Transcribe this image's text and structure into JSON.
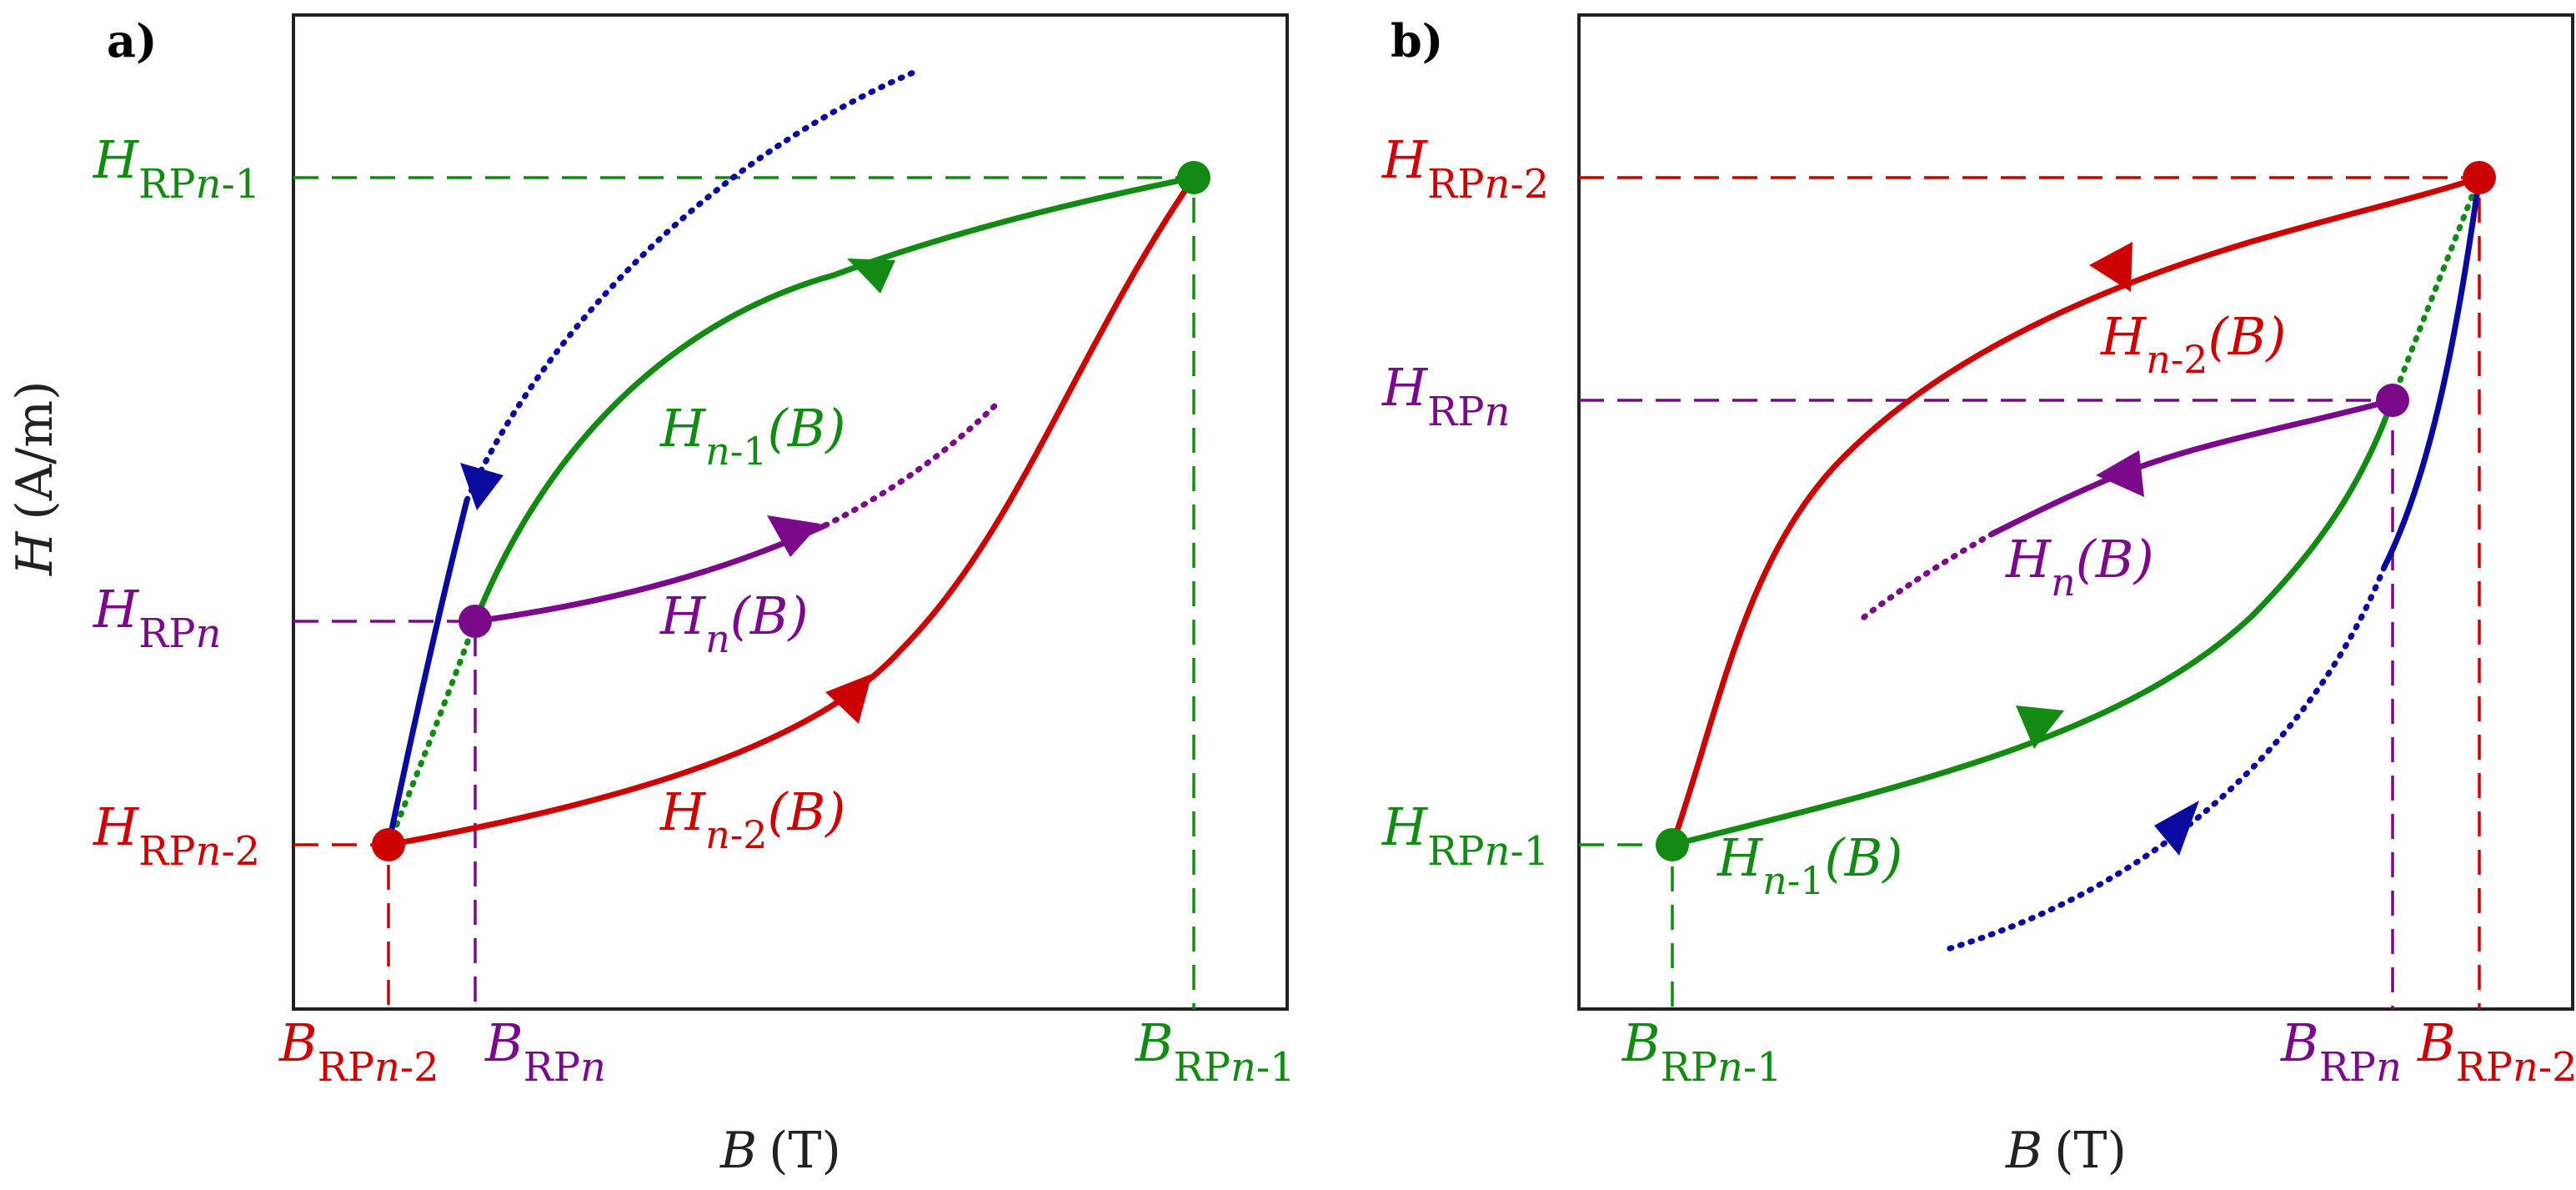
{
  "panels": [
    {
      "letter": "a)",
      "x_axis_label": {
        "var": "B",
        "unit": "(T)"
      },
      "y_axis_label": {
        "var": "H",
        "unit": "(A/m)"
      },
      "y_ticks": [
        {
          "main": "H",
          "sub": "RP",
          "subvar": "n",
          "subtail": "-1"
        },
        {
          "main": "H",
          "sub": "RP",
          "subvar": "n",
          "subtail": ""
        },
        {
          "main": "H",
          "sub": "RP",
          "subvar": "n",
          "subtail": "-2"
        }
      ],
      "x_ticks": [
        {
          "main": "B",
          "sub": "RP",
          "subvar": "n",
          "subtail": "-2"
        },
        {
          "main": "B",
          "sub": "RP",
          "subvar": "n",
          "subtail": ""
        },
        {
          "main": "B",
          "sub": "RP",
          "subvar": "n",
          "subtail": "-1"
        }
      ],
      "curve_labels": [
        {
          "main": "H",
          "sub": "n",
          "subtail": "-1",
          "arg": "(B)"
        },
        {
          "main": "H",
          "sub": "n",
          "subtail": "",
          "arg": "(B)"
        },
        {
          "main": "H",
          "sub": "n",
          "subtail": "-2",
          "arg": "(B)"
        }
      ]
    },
    {
      "letter": "b)",
      "x_axis_label": {
        "var": "B",
        "unit": "(T)"
      },
      "y_ticks": [
        {
          "main": "H",
          "sub": "RP",
          "subvar": "n",
          "subtail": "-2"
        },
        {
          "main": "H",
          "sub": "RP",
          "subvar": "n",
          "subtail": ""
        },
        {
          "main": "H",
          "sub": "RP",
          "subvar": "n",
          "subtail": "-1"
        }
      ],
      "x_ticks": [
        {
          "main": "B",
          "sub": "RP",
          "subvar": "n",
          "subtail": "-1"
        },
        {
          "main": "B",
          "sub": "RP",
          "subvar": "n",
          "subtail": ""
        },
        {
          "main": "B",
          "sub": "RP",
          "subvar": "n",
          "subtail": "-2"
        }
      ],
      "curve_labels": [
        {
          "main": "H",
          "sub": "n",
          "subtail": "-2",
          "arg": "(B)"
        },
        {
          "main": "H",
          "sub": "n",
          "subtail": "",
          "arg": "(B)"
        },
        {
          "main": "H",
          "sub": "n",
          "subtail": "-1",
          "arg": "(B)"
        }
      ]
    }
  ],
  "colors": {
    "red": "#cc0000",
    "green": "#138a13",
    "purple": "#7a0a8a",
    "blue": "#0a0a9e",
    "frame": "#222222"
  }
}
